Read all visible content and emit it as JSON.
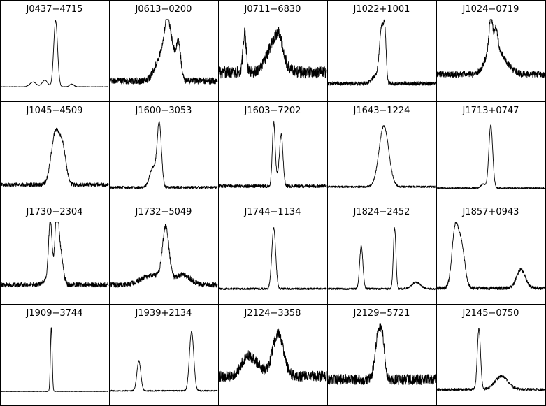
{
  "chart_data": {
    "type": "line",
    "layout": {
      "rows": 4,
      "columns": 5
    },
    "axes": "none",
    "line_color": "#000000",
    "panels": [
      {
        "title": "J0437−4715",
        "noise": 0.004,
        "baseline": 0.03,
        "components": [
          {
            "c": 0.51,
            "w": 0.018,
            "a": 1.0
          },
          {
            "c": 0.41,
            "w": 0.025,
            "a": 0.1
          },
          {
            "c": 0.3,
            "w": 0.03,
            "a": 0.07
          },
          {
            "c": 0.66,
            "w": 0.02,
            "a": 0.04
          }
        ]
      },
      {
        "title": "J0613−0200",
        "noise": 0.05,
        "baseline": 0.12,
        "components": [
          {
            "c": 0.55,
            "w": 0.045,
            "a": 0.75
          },
          {
            "c": 0.46,
            "w": 0.05,
            "a": 0.28
          },
          {
            "c": 0.64,
            "w": 0.02,
            "a": 0.5
          },
          {
            "c": 0.53,
            "w": 0.015,
            "a": 0.25
          }
        ]
      },
      {
        "title": "J0711−6830",
        "noise": 0.09,
        "baseline": 0.25,
        "components": [
          {
            "c": 0.24,
            "w": 0.015,
            "a": 0.6
          },
          {
            "c": 0.52,
            "w": 0.07,
            "a": 0.45
          },
          {
            "c": 0.56,
            "w": 0.03,
            "a": 0.2
          }
        ]
      },
      {
        "title": "J1022+1001",
        "noise": 0.03,
        "baseline": 0.08,
        "components": [
          {
            "c": 0.5,
            "w": 0.02,
            "a": 0.8
          },
          {
            "c": 0.53,
            "w": 0.012,
            "a": 0.6
          },
          {
            "c": 0.45,
            "w": 0.04,
            "a": 0.12
          }
        ]
      },
      {
        "title": "J1024−0719",
        "noise": 0.05,
        "baseline": 0.22,
        "components": [
          {
            "c": 0.52,
            "w": 0.06,
            "a": 0.45
          },
          {
            "c": 0.5,
            "w": 0.015,
            "a": 0.45
          },
          {
            "c": 0.55,
            "w": 0.015,
            "a": 0.25
          },
          {
            "c": 0.63,
            "w": 0.06,
            "a": 0.15
          }
        ]
      },
      {
        "title": "J1045−4509",
        "noise": 0.03,
        "baseline": 0.08,
        "components": [
          {
            "c": 0.51,
            "w": 0.04,
            "a": 0.8
          },
          {
            "c": 0.58,
            "w": 0.03,
            "a": 0.45
          }
        ]
      },
      {
        "title": "J1600−3053",
        "noise": 0.02,
        "baseline": 0.04,
        "components": [
          {
            "c": 0.46,
            "w": 0.02,
            "a": 0.95
          },
          {
            "c": 0.4,
            "w": 0.03,
            "a": 0.3
          }
        ]
      },
      {
        "title": "J1603−7202",
        "noise": 0.025,
        "baseline": 0.06,
        "components": [
          {
            "c": 0.51,
            "w": 0.013,
            "a": 0.9
          },
          {
            "c": 0.58,
            "w": 0.016,
            "a": 0.72
          },
          {
            "c": 0.545,
            "w": 0.03,
            "a": 0.12
          }
        ]
      },
      {
        "title": "J1643−1224",
        "noise": 0.015,
        "baseline": 0.05,
        "components": [
          {
            "c": 0.52,
            "w": 0.045,
            "a": 0.92
          }
        ]
      },
      {
        "title": "J1713+0747",
        "noise": 0.01,
        "baseline": 0.03,
        "components": [
          {
            "c": 0.5,
            "w": 0.018,
            "a": 0.95
          },
          {
            "c": 0.43,
            "w": 0.02,
            "a": 0.06
          }
        ]
      },
      {
        "title": "J1730−2304",
        "noise": 0.035,
        "baseline": 0.1,
        "components": [
          {
            "c": 0.46,
            "w": 0.015,
            "a": 0.8
          },
          {
            "c": 0.52,
            "w": 0.015,
            "a": 0.8
          },
          {
            "c": 0.55,
            "w": 0.025,
            "a": 0.5
          },
          {
            "c": 0.48,
            "w": 0.05,
            "a": 0.2
          }
        ]
      },
      {
        "title": "J1732−5049",
        "noise": 0.04,
        "baseline": 0.1,
        "components": [
          {
            "c": 0.52,
            "w": 0.03,
            "a": 0.8
          },
          {
            "c": 0.4,
            "w": 0.1,
            "a": 0.15
          },
          {
            "c": 0.68,
            "w": 0.07,
            "a": 0.15
          }
        ]
      },
      {
        "title": "J1744−1134",
        "noise": 0.015,
        "baseline": 0.04,
        "components": [
          {
            "c": 0.51,
            "w": 0.018,
            "a": 0.92
          }
        ]
      },
      {
        "title": "J1824−2452",
        "noise": 0.015,
        "baseline": 0.04,
        "components": [
          {
            "c": 0.31,
            "w": 0.015,
            "a": 0.65
          },
          {
            "c": 0.62,
            "w": 0.012,
            "a": 0.92
          },
          {
            "c": 0.82,
            "w": 0.04,
            "a": 0.1
          }
        ]
      },
      {
        "title": "J1857+0943",
        "noise": 0.025,
        "baseline": 0.05,
        "components": [
          {
            "c": 0.17,
            "w": 0.03,
            "a": 0.9
          },
          {
            "c": 0.23,
            "w": 0.03,
            "a": 0.6
          },
          {
            "c": 0.78,
            "w": 0.04,
            "a": 0.28
          }
        ]
      },
      {
        "title": "J1909−3744",
        "noise": 0.004,
        "baseline": 0.02,
        "components": [
          {
            "c": 0.47,
            "w": 0.008,
            "a": 0.97
          }
        ]
      },
      {
        "title": "J1939+2134",
        "noise": 0.01,
        "baseline": 0.03,
        "components": [
          {
            "c": 0.27,
            "w": 0.018,
            "a": 0.45
          },
          {
            "c": 0.76,
            "w": 0.02,
            "a": 0.9
          }
        ]
      },
      {
        "title": "J2124−3358",
        "noise": 0.08,
        "baseline": 0.25,
        "components": [
          {
            "c": 0.27,
            "w": 0.06,
            "a": 0.3
          },
          {
            "c": 0.55,
            "w": 0.05,
            "a": 0.65
          },
          {
            "c": 0.38,
            "w": 0.05,
            "a": 0.1
          }
        ]
      },
      {
        "title": "J2129−5721",
        "noise": 0.08,
        "baseline": 0.2,
        "components": [
          {
            "c": 0.47,
            "w": 0.03,
            "a": 0.7
          },
          {
            "c": 0.51,
            "w": 0.02,
            "a": 0.4
          }
        ]
      },
      {
        "title": "J2145−0750",
        "noise": 0.02,
        "baseline": 0.05,
        "components": [
          {
            "c": 0.39,
            "w": 0.015,
            "a": 0.92
          },
          {
            "c": 0.6,
            "w": 0.06,
            "a": 0.2
          }
        ]
      }
    ]
  }
}
